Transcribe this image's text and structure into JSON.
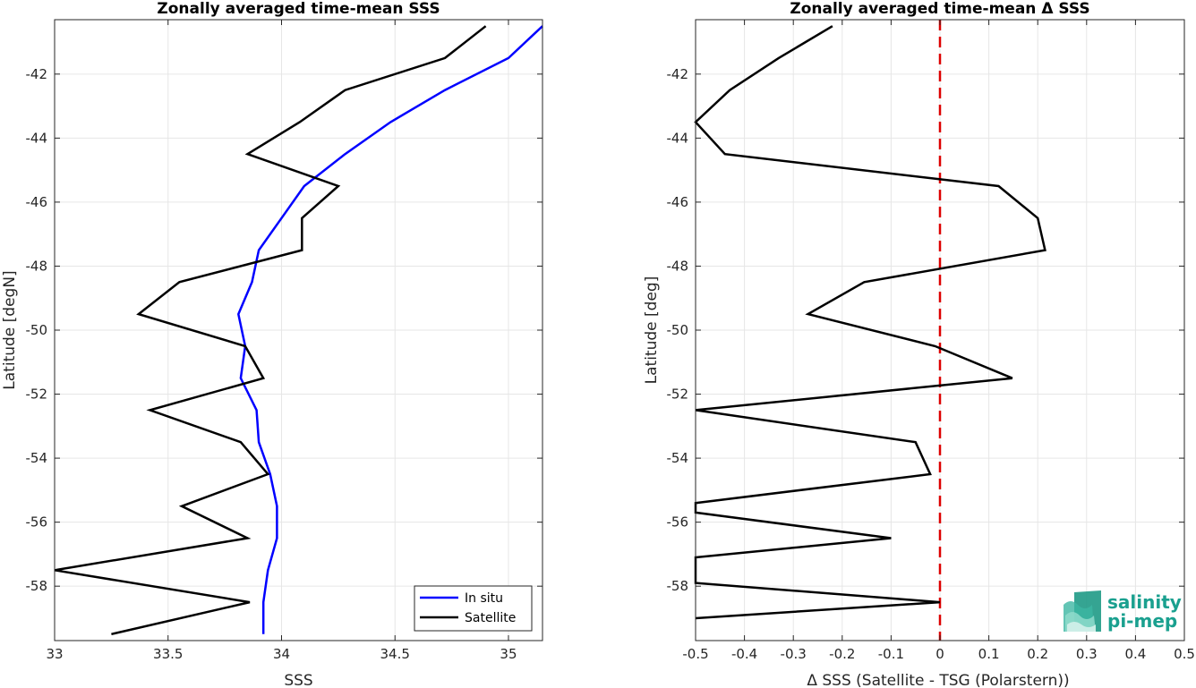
{
  "chart_data": [
    {
      "type": "line",
      "title": "Zonally averaged time-mean SSS",
      "xlabel": "SSS",
      "ylabel": "Latitude [degN]",
      "xlim": [
        33,
        35.15
      ],
      "ylim": [
        -59.7,
        -40.3
      ],
      "xticks": [
        33,
        33.5,
        34,
        34.5,
        35
      ],
      "xtick_labels": [
        "33",
        "33.5",
        "34",
        "34.5",
        "35"
      ],
      "yticks": [
        -58,
        -56,
        -54,
        -52,
        -50,
        -48,
        -46,
        -44,
        -42
      ],
      "ytick_labels": [
        "-58",
        "-56",
        "-54",
        "-52",
        "-50",
        "-48",
        "-46",
        "-44",
        "-42"
      ],
      "grid": true,
      "legend": "bottom-right",
      "series": [
        {
          "name": "In situ",
          "color": "#0000ff",
          "points": [
            [
              35.15,
              -40.5
            ],
            [
              35.0,
              -41.5
            ],
            [
              34.72,
              -42.5
            ],
            [
              34.48,
              -43.5
            ],
            [
              34.28,
              -44.5
            ],
            [
              34.1,
              -45.5
            ],
            [
              34.0,
              -46.5
            ],
            [
              33.9,
              -47.5
            ],
            [
              33.87,
              -48.5
            ],
            [
              33.81,
              -49.5
            ],
            [
              33.84,
              -50.5
            ],
            [
              33.82,
              -51.5
            ],
            [
              33.89,
              -52.5
            ],
            [
              33.9,
              -53.5
            ],
            [
              33.95,
              -54.5
            ],
            [
              33.98,
              -55.5
            ],
            [
              33.98,
              -56.5
            ],
            [
              33.94,
              -57.5
            ],
            [
              33.92,
              -58.5
            ],
            [
              33.92,
              -59.5
            ]
          ]
        },
        {
          "name": "Satellite",
          "color": "#000000",
          "points": [
            [
              34.9,
              -40.5
            ],
            [
              34.72,
              -41.5
            ],
            [
              34.28,
              -42.5
            ],
            [
              34.08,
              -43.5
            ],
            [
              33.85,
              -44.5
            ],
            [
              34.25,
              -45.5
            ],
            [
              34.09,
              -46.5
            ],
            [
              34.09,
              -47.5
            ],
            [
              33.55,
              -48.5
            ],
            [
              33.37,
              -49.5
            ],
            [
              33.84,
              -50.5
            ],
            [
              33.92,
              -51.5
            ],
            [
              33.42,
              -52.5
            ],
            [
              33.82,
              -53.5
            ],
            [
              33.94,
              -54.5
            ],
            [
              33.56,
              -55.5
            ],
            [
              33.85,
              -56.5
            ],
            [
              33.0,
              -57.5
            ],
            [
              33.86,
              -58.5
            ],
            [
              33.25,
              -59.5
            ]
          ]
        }
      ]
    },
    {
      "type": "line",
      "title": "Zonally averaged time-mean Δ SSS",
      "xlabel": "Δ SSS (Satellite - TSG (Polarstern))",
      "ylabel": "Latitude [deg]",
      "xlim": [
        -0.5,
        0.5
      ],
      "ylim": [
        -59.7,
        -40.3
      ],
      "xticks": [
        -0.5,
        -0.4,
        -0.3,
        -0.2,
        -0.1,
        0,
        0.1,
        0.2,
        0.3,
        0.4,
        0.5
      ],
      "xtick_labels": [
        "-0.5",
        "-0.4",
        "-0.3",
        "-0.2",
        "-0.1",
        "0",
        "0.1",
        "0.2",
        "0.3",
        "0.4",
        "0.5"
      ],
      "yticks": [
        -58,
        -56,
        -54,
        -52,
        -50,
        -48,
        -46,
        -44,
        -42
      ],
      "ytick_labels": [
        "-58",
        "-56",
        "-54",
        "-52",
        "-50",
        "-48",
        "-46",
        "-44",
        "-42"
      ],
      "grid": true,
      "reference_line": {
        "x": 0,
        "color": "#dd0000",
        "style": "dashed"
      },
      "series": [
        {
          "color": "#000000",
          "points": [
            [
              -0.22,
              -40.5
            ],
            [
              -0.33,
              -41.5
            ],
            [
              -0.43,
              -42.5
            ],
            [
              -0.5,
              -43.5
            ],
            [
              -0.44,
              -44.5
            ],
            [
              0.12,
              -45.5
            ],
            [
              0.2,
              -46.5
            ],
            [
              0.215,
              -47.5
            ],
            [
              -0.155,
              -48.5
            ],
            [
              -0.27,
              -49.5
            ],
            [
              -0.01,
              -50.5
            ],
            [
              0.148,
              -51.5
            ],
            [
              -0.5,
              -52.5
            ],
            [
              -0.05,
              -53.5
            ],
            [
              -0.02,
              -54.5
            ],
            [
              -0.5,
              -55.4
            ],
            [
              -0.5,
              -55.7
            ],
            [
              -0.1,
              -56.5
            ],
            [
              -0.5,
              -57.1
            ],
            [
              -0.5,
              -57.9
            ],
            [
              0.0,
              -58.5
            ],
            [
              -0.5,
              -59.0
            ]
          ]
        }
      ]
    }
  ],
  "logo": {
    "line1": "salinity",
    "line2": "pi-mep",
    "color": "#1aa08f"
  }
}
